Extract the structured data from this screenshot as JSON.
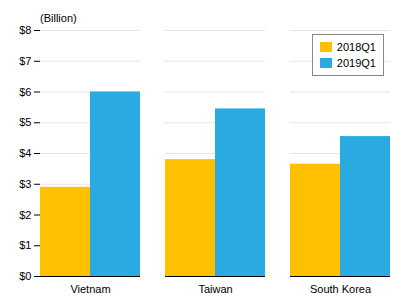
{
  "chart_data": {
    "type": "bar",
    "categories": [
      "Vietnam",
      "Taiwan",
      "South Korea"
    ],
    "series": [
      {
        "name": "2018Q1",
        "color": "#FFC000",
        "values": [
          2.9,
          3.8,
          3.65
        ]
      },
      {
        "name": "2019Q1",
        "color": "#29ABE2",
        "values": [
          6.0,
          5.45,
          4.55
        ]
      }
    ],
    "annotations": [
      "(Billion)"
    ],
    "ylim": [
      0,
      8
    ],
    "yticks": [
      {
        "value": 0,
        "label": "$0"
      },
      {
        "value": 1,
        "label": "$1"
      },
      {
        "value": 2,
        "label": "$2"
      },
      {
        "value": 3,
        "label": "$3"
      },
      {
        "value": 4,
        "label": "$4"
      },
      {
        "value": 5,
        "label": "$5"
      },
      {
        "value": 6,
        "label": "$6"
      },
      {
        "value": 7,
        "label": "$7"
      },
      {
        "value": 8,
        "label": "$8"
      }
    ],
    "grid": true,
    "legend": "upper right"
  }
}
